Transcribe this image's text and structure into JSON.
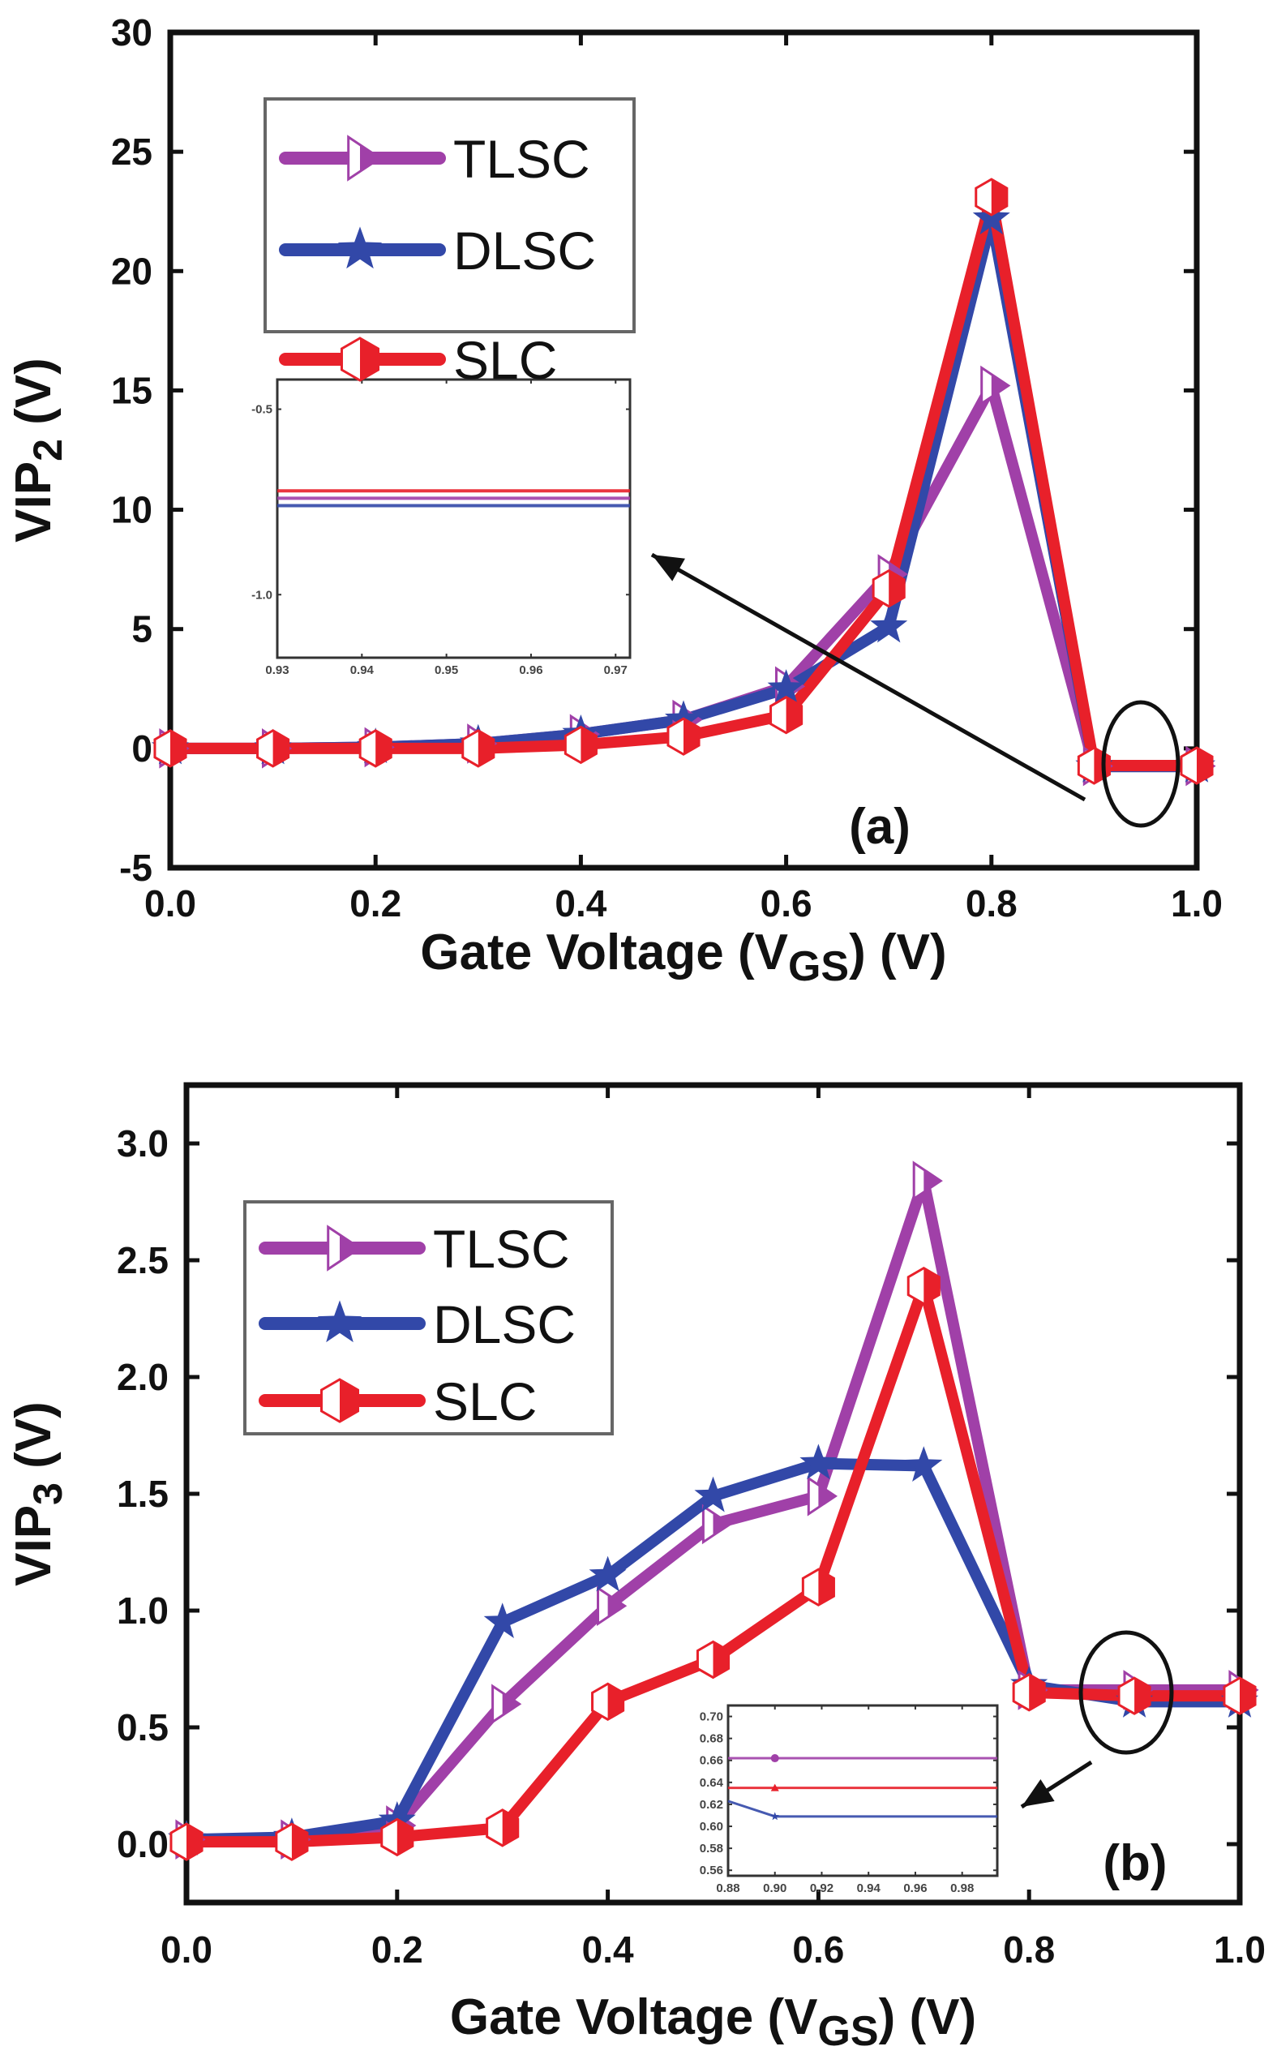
{
  "chart_data": [
    {
      "type": "line",
      "panel_label": "(a)",
      "xlabel": "Gate Voltage (V",
      "xlabel_sub": "GS",
      "xlabel_tail": ") (V)",
      "ylabel": "VIP",
      "ylabel_sub": "2",
      "ylabel_tail": " (V)",
      "xlim": [
        0.0,
        1.0
      ],
      "ylim": [
        -5,
        30
      ],
      "xticks": [
        0.0,
        0.2,
        0.4,
        0.6,
        0.8,
        1.0
      ],
      "xtick_labels": [
        "0.0",
        "0.2",
        "0.4",
        "0.6",
        "0.8",
        "1.0"
      ],
      "yticks": [
        -5,
        0,
        5,
        10,
        15,
        20,
        25,
        30
      ],
      "ytick_labels": [
        "-5",
        "0",
        "5",
        "10",
        "15",
        "20",
        "25",
        "30"
      ],
      "legend_position": "top-left",
      "x": [
        0.0,
        0.1,
        0.2,
        0.3,
        0.4,
        0.5,
        0.6,
        0.7,
        0.8,
        0.9,
        1.0
      ],
      "series": [
        {
          "name": "TLSC",
          "color": "#a040a8",
          "marker": "triangle-right",
          "values": [
            0.0,
            0.0,
            0.05,
            0.2,
            0.6,
            1.2,
            2.6,
            7.3,
            15.2,
            -0.74,
            -0.74
          ]
        },
        {
          "name": "DLSC",
          "color": "#3248a8",
          "marker": "star",
          "values": [
            0.0,
            0.0,
            0.05,
            0.2,
            0.6,
            1.2,
            2.5,
            5.1,
            22.2,
            -0.76,
            -0.76
          ]
        },
        {
          "name": "SLC",
          "color": "#e8202a",
          "marker": "half-hexagon",
          "values": [
            0.0,
            0.0,
            0.0,
            0.0,
            0.15,
            0.5,
            1.4,
            6.7,
            23.1,
            -0.72,
            -0.72
          ]
        }
      ],
      "annotation": {
        "type": "ellipse-with-arrow",
        "target_x": 0.95,
        "target_y": -0.75,
        "points_to": "inset"
      },
      "inset": {
        "type": "line",
        "xlim": [
          0.93,
          0.9717
        ],
        "ylim": [
          -1.17,
          -0.42
        ],
        "xtick_labels": [
          "0.93",
          "0.94",
          "0.95",
          "0.96",
          "0.97"
        ],
        "xticks": [
          0.93,
          0.94,
          0.95,
          0.96,
          0.97
        ],
        "yticks": [
          -0.5,
          -1.0
        ],
        "ytick_labels": [
          "-0.5",
          "-1.0"
        ],
        "series": [
          {
            "name": "SLC",
            "color": "#e8202a",
            "x": [
              0.93,
              0.9717
            ],
            "values": [
              -0.72,
              -0.72
            ]
          },
          {
            "name": "TLSC",
            "color": "#a040a8",
            "x": [
              0.93,
              0.9717
            ],
            "values": [
              -0.74,
              -0.74
            ]
          },
          {
            "name": "DLSC",
            "color": "#3248a8",
            "x": [
              0.93,
              0.9717
            ],
            "values": [
              -0.76,
              -0.76
            ]
          }
        ]
      }
    },
    {
      "type": "line",
      "panel_label": "(b)",
      "xlabel": "Gate Voltage (V",
      "xlabel_sub": "GS",
      "xlabel_tail": ") (V)",
      "ylabel": "VIP",
      "ylabel_sub": "3",
      "ylabel_tail": " (V)",
      "xlim": [
        0.0,
        1.0
      ],
      "ylim": [
        -0.25,
        3.25
      ],
      "xticks": [
        0.0,
        0.2,
        0.4,
        0.6,
        0.8,
        1.0
      ],
      "xtick_labels": [
        "0.0",
        "0.2",
        "0.4",
        "0.6",
        "0.8",
        "1.0"
      ],
      "yticks": [
        0.0,
        0.5,
        1.0,
        1.5,
        2.0,
        2.5,
        3.0
      ],
      "ytick_labels": [
        "0.0",
        "0.5",
        "1.0",
        "1.5",
        "2.0",
        "2.5",
        "3.0"
      ],
      "legend_position": "top-left",
      "x": [
        0.0,
        0.1,
        0.2,
        0.3,
        0.4,
        0.5,
        0.6,
        0.7,
        0.8,
        0.9,
        1.0
      ],
      "series": [
        {
          "name": "TLSC",
          "color": "#a040a8",
          "marker": "triangle-right",
          "values": [
            0.02,
            0.02,
            0.08,
            0.6,
            1.02,
            1.37,
            1.49,
            2.84,
            0.66,
            0.66,
            0.66
          ]
        },
        {
          "name": "DLSC",
          "color": "#3248a8",
          "marker": "star",
          "values": [
            0.02,
            0.03,
            0.1,
            0.95,
            1.15,
            1.49,
            1.63,
            1.62,
            0.68,
            0.61,
            0.61
          ]
        },
        {
          "name": "SLC",
          "color": "#e8202a",
          "marker": "half-hexagon",
          "values": [
            0.01,
            0.01,
            0.03,
            0.07,
            0.61,
            0.79,
            1.1,
            2.39,
            0.65,
            0.635,
            0.635
          ]
        }
      ],
      "annotation": {
        "type": "ellipse-with-arrow",
        "target_x": 0.9,
        "target_y": 0.63,
        "points_to": "inset"
      },
      "inset": {
        "type": "line",
        "xlim": [
          0.88,
          0.995
        ],
        "ylim": [
          0.555,
          0.71
        ],
        "xticks": [
          0.88,
          0.9,
          0.92,
          0.94,
          0.96,
          0.98
        ],
        "xtick_labels": [
          "0.88",
          "0.90",
          "0.92",
          "0.94",
          "0.96",
          "0.98"
        ],
        "yticks": [
          0.56,
          0.58,
          0.6,
          0.62,
          0.64,
          0.66,
          0.68,
          0.7
        ],
        "ytick_labels": [
          "0.56",
          "0.58",
          "0.60",
          "0.62",
          "0.64",
          "0.66",
          "0.68",
          "0.70"
        ],
        "series": [
          {
            "name": "TLSC",
            "color": "#a040a8",
            "marker": "circle",
            "x": [
              0.88,
              0.9,
              0.995
            ],
            "values": [
              0.662,
              0.662,
              0.662
            ]
          },
          {
            "name": "SLC",
            "color": "#e8202a",
            "marker": "triangle",
            "x": [
              0.88,
              0.9,
              0.995
            ],
            "values": [
              0.635,
              0.635,
              0.635
            ]
          },
          {
            "name": "DLSC",
            "color": "#3248a8",
            "marker": "star",
            "x": [
              0.88,
              0.9,
              0.995
            ],
            "values": [
              0.623,
              0.609,
              0.609
            ]
          }
        ]
      }
    }
  ]
}
